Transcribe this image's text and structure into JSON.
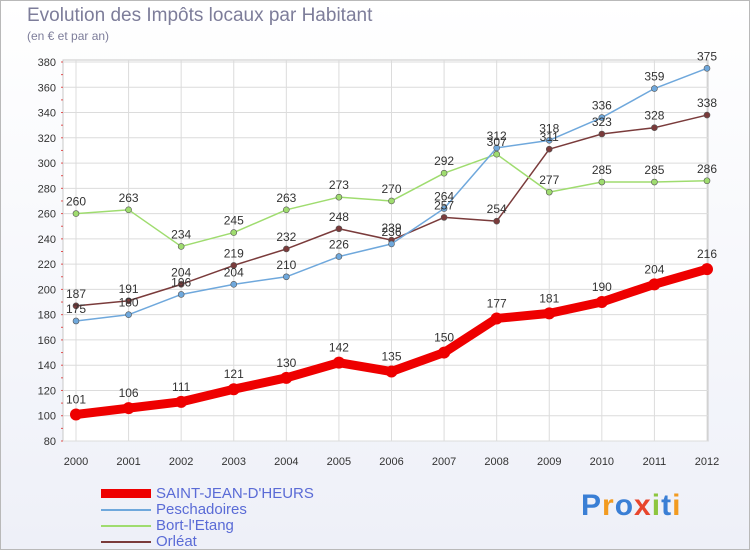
{
  "title": "Evolution des Impôts locaux par Habitant",
  "subtitle": "(en € et par an)",
  "brand": "Proxiti",
  "chart_data": {
    "type": "line",
    "title": "Evolution des Impôts locaux par Habitant",
    "subtitle": "(en € et par an)",
    "x": [
      2000,
      2001,
      2002,
      2003,
      2004,
      2005,
      2006,
      2007,
      2008,
      2009,
      2010,
      2011,
      2012
    ],
    "ylim": [
      80,
      380
    ],
    "yticks": [
      80,
      100,
      120,
      140,
      160,
      180,
      200,
      220,
      240,
      260,
      280,
      300,
      320,
      340,
      360,
      380
    ],
    "grid": true,
    "legend_position": "bottom-left",
    "series": [
      {
        "name": "SAINT-JEAN-D'HEURS",
        "color": "#ee0000",
        "values": [
          101,
          106,
          111,
          121,
          130,
          142,
          135,
          150,
          177,
          181,
          190,
          204,
          216
        ]
      },
      {
        "name": "Peschadoires",
        "color": "#6fa8dc",
        "values": [
          175,
          180,
          196,
          204,
          210,
          226,
          236,
          264,
          312,
          318,
          336,
          359,
          375
        ]
      },
      {
        "name": "Bort-l'Etang",
        "color": "#9fdc6f",
        "values": [
          260,
          263,
          234,
          245,
          263,
          273,
          270,
          292,
          307,
          277,
          285,
          285,
          286
        ]
      },
      {
        "name": "Orléat",
        "color": "#7a3b3b",
        "values": [
          187,
          191,
          204,
          219,
          232,
          248,
          239,
          257,
          254,
          311,
          323,
          328,
          338
        ]
      }
    ]
  }
}
